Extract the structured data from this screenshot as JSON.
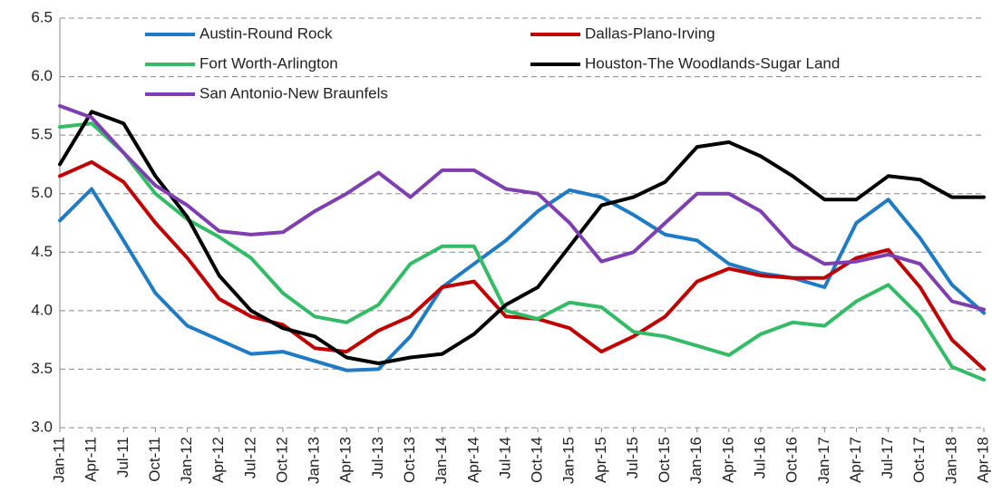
{
  "chart_data": {
    "type": "line",
    "categories": [
      "Jan-11",
      "Apr-11",
      "Jul-11",
      "Oct-11",
      "Jan-12",
      "Apr-12",
      "Jul-12",
      "Oct-12",
      "Jan-13",
      "Apr-13",
      "Jul-13",
      "Oct-13",
      "Jan-14",
      "Apr-14",
      "Jul-14",
      "Oct-14",
      "Jan-15",
      "Apr-15",
      "Jul-15",
      "Oct-15",
      "Jan-16",
      "Apr-16",
      "Jul-16",
      "Oct-16",
      "Jan-17",
      "Apr-17",
      "Jul-17",
      "Oct-17",
      "Jan-18",
      "Apr-18"
    ],
    "series": [
      {
        "name": "Austin-Round Rock",
        "color": "#1f7bc4",
        "values": [
          4.77,
          5.04,
          4.6,
          4.15,
          3.87,
          3.75,
          3.63,
          3.65,
          3.57,
          3.49,
          3.5,
          3.78,
          4.2,
          4.4,
          4.6,
          4.85,
          5.03,
          4.97,
          4.82,
          4.65,
          4.6,
          4.4,
          4.32,
          4.28,
          4.2,
          4.75,
          4.95,
          4.62,
          4.22,
          3.98
        ]
      },
      {
        "name": "Dallas-Plano-Irving",
        "color": "#c00000",
        "values": [
          5.15,
          5.27,
          5.1,
          4.75,
          4.45,
          4.1,
          3.95,
          3.88,
          3.68,
          3.65,
          3.83,
          3.95,
          4.2,
          4.25,
          3.95,
          3.93,
          3.85,
          3.65,
          3.78,
          3.95,
          4.25,
          4.36,
          4.3,
          4.28,
          4.28,
          4.45,
          4.52,
          4.2,
          3.75,
          3.5
        ]
      },
      {
        "name": "Fort Worth-Arlington",
        "color": "#33bb66",
        "values": [
          5.57,
          5.6,
          5.35,
          5.0,
          4.78,
          4.63,
          4.45,
          4.15,
          3.95,
          3.9,
          4.05,
          4.4,
          4.55,
          4.55,
          4.0,
          3.93,
          4.07,
          4.03,
          3.82,
          3.78,
          3.7,
          3.62,
          3.8,
          3.9,
          3.87,
          4.08,
          4.22,
          3.95,
          3.52,
          3.41
        ]
      },
      {
        "name": "Houston-The Woodlands-Sugar Land",
        "color": "#000000",
        "values": [
          5.25,
          5.7,
          5.6,
          5.15,
          4.8,
          4.3,
          4.0,
          3.85,
          3.78,
          3.6,
          3.55,
          3.6,
          3.63,
          3.8,
          4.05,
          4.2,
          4.55,
          4.9,
          4.97,
          5.1,
          5.4,
          5.44,
          5.32,
          5.15,
          4.95,
          4.95,
          5.15,
          5.12,
          4.97,
          4.97
        ]
      },
      {
        "name": "San Antonio-New Braunfels",
        "color": "#7f3fb0",
        "values": [
          5.75,
          5.65,
          5.35,
          5.07,
          4.9,
          4.68,
          4.65,
          4.67,
          4.85,
          5.0,
          5.18,
          4.97,
          5.2,
          5.2,
          5.04,
          5.0,
          4.75,
          4.42,
          4.5,
          4.75,
          5.0,
          5.0,
          4.85,
          4.55,
          4.4,
          4.42,
          4.48,
          4.4,
          4.08,
          4.01
        ]
      }
    ],
    "ylim": [
      3.0,
      6.5
    ],
    "yticks": [
      {
        "value": 3,
        "label": "3.0"
      },
      3.5,
      {
        "value": 4,
        "label": "4.0"
      },
      4.5,
      {
        "value": 5,
        "label": "5.0"
      },
      5.5,
      {
        "value": 6,
        "label": "6.0"
      },
      6.5
    ],
    "grid": true
  }
}
